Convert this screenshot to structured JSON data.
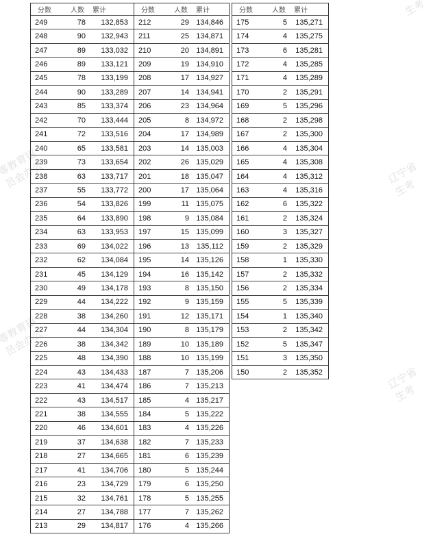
{
  "headers": {
    "score": "分数",
    "count": "人数",
    "cumulative": "累计"
  },
  "blocks": [
    {
      "rows": [
        [
          "249",
          "78",
          "132,853"
        ],
        [
          "248",
          "90",
          "132,943"
        ],
        [
          "247",
          "89",
          "133,032"
        ],
        [
          "246",
          "89",
          "133,121"
        ],
        [
          "245",
          "78",
          "133,199"
        ],
        [
          "244",
          "90",
          "133,289"
        ],
        [
          "243",
          "85",
          "133,374"
        ],
        [
          "242",
          "70",
          "133,444"
        ],
        [
          "241",
          "72",
          "133,516"
        ],
        [
          "240",
          "65",
          "133,581"
        ],
        [
          "239",
          "73",
          "133,654"
        ],
        [
          "238",
          "63",
          "133,717"
        ],
        [
          "237",
          "55",
          "133,772"
        ],
        [
          "236",
          "54",
          "133,826"
        ],
        [
          "235",
          "64",
          "133,890"
        ],
        [
          "234",
          "63",
          "133,953"
        ],
        [
          "233",
          "69",
          "134,022"
        ],
        [
          "232",
          "62",
          "134,084"
        ],
        [
          "231",
          "45",
          "134,129"
        ],
        [
          "230",
          "49",
          "134,178"
        ],
        [
          "229",
          "44",
          "134,222"
        ],
        [
          "228",
          "38",
          "134,260"
        ],
        [
          "227",
          "44",
          "134,304"
        ],
        [
          "226",
          "38",
          "134,342"
        ],
        [
          "225",
          "48",
          "134,390"
        ],
        [
          "224",
          "43",
          "134,433"
        ],
        [
          "223",
          "41",
          "134,474"
        ],
        [
          "222",
          "43",
          "134,517"
        ],
        [
          "221",
          "38",
          "134,555"
        ],
        [
          "220",
          "46",
          "134,601"
        ],
        [
          "219",
          "37",
          "134,638"
        ],
        [
          "218",
          "27",
          "134,665"
        ],
        [
          "217",
          "41",
          "134,706"
        ],
        [
          "216",
          "23",
          "134,729"
        ],
        [
          "215",
          "32",
          "134,761"
        ],
        [
          "214",
          "27",
          "134,788"
        ],
        [
          "213",
          "29",
          "134,817"
        ]
      ]
    },
    {
      "rows": [
        [
          "212",
          "29",
          "134,846"
        ],
        [
          "211",
          "25",
          "134,871"
        ],
        [
          "210",
          "20",
          "134,891"
        ],
        [
          "209",
          "19",
          "134,910"
        ],
        [
          "208",
          "17",
          "134,927"
        ],
        [
          "207",
          "14",
          "134,941"
        ],
        [
          "206",
          "23",
          "134,964"
        ],
        [
          "205",
          "8",
          "134,972"
        ],
        [
          "204",
          "17",
          "134,989"
        ],
        [
          "203",
          "14",
          "135,003"
        ],
        [
          "202",
          "26",
          "135,029"
        ],
        [
          "201",
          "18",
          "135,047"
        ],
        [
          "200",
          "17",
          "135,064"
        ],
        [
          "199",
          "11",
          "135,075"
        ],
        [
          "198",
          "9",
          "135,084"
        ],
        [
          "197",
          "15",
          "135,099"
        ],
        [
          "196",
          "13",
          "135,112"
        ],
        [
          "195",
          "14",
          "135,126"
        ],
        [
          "194",
          "16",
          "135,142"
        ],
        [
          "193",
          "8",
          "135,150"
        ],
        [
          "192",
          "9",
          "135,159"
        ],
        [
          "191",
          "12",
          "135,171"
        ],
        [
          "190",
          "8",
          "135,179"
        ],
        [
          "189",
          "10",
          "135,189"
        ],
        [
          "188",
          "10",
          "135,199"
        ],
        [
          "187",
          "7",
          "135,206"
        ],
        [
          "186",
          "7",
          "135,213"
        ],
        [
          "185",
          "4",
          "135,217"
        ],
        [
          "184",
          "5",
          "135,222"
        ],
        [
          "183",
          "4",
          "135,226"
        ],
        [
          "182",
          "7",
          "135,233"
        ],
        [
          "181",
          "6",
          "135,239"
        ],
        [
          "180",
          "5",
          "135,244"
        ],
        [
          "179",
          "6",
          "135,250"
        ],
        [
          "178",
          "5",
          "135,255"
        ],
        [
          "177",
          "7",
          "135,262"
        ],
        [
          "176",
          "4",
          "135,266"
        ]
      ]
    },
    {
      "rows": [
        [
          "175",
          "5",
          "135,271"
        ],
        [
          "174",
          "4",
          "135,275"
        ],
        [
          "173",
          "6",
          "135,281"
        ],
        [
          "172",
          "4",
          "135,285"
        ],
        [
          "171",
          "4",
          "135,289"
        ],
        [
          "170",
          "2",
          "135,291"
        ],
        [
          "169",
          "5",
          "135,296"
        ],
        [
          "168",
          "2",
          "135,298"
        ],
        [
          "167",
          "2",
          "135,300"
        ],
        [
          "166",
          "4",
          "135,304"
        ],
        [
          "165",
          "4",
          "135,308"
        ],
        [
          "164",
          "4",
          "135,312"
        ],
        [
          "163",
          "4",
          "135,316"
        ],
        [
          "162",
          "6",
          "135,322"
        ],
        [
          "161",
          "2",
          "135,324"
        ],
        [
          "160",
          "3",
          "135,327"
        ],
        [
          "159",
          "2",
          "135,329"
        ],
        [
          "158",
          "1",
          "135,330"
        ],
        [
          "157",
          "2",
          "135,332"
        ],
        [
          "156",
          "2",
          "135,334"
        ],
        [
          "155",
          "5",
          "135,339"
        ],
        [
          "154",
          "1",
          "135,340"
        ],
        [
          "153",
          "2",
          "135,342"
        ],
        [
          "152",
          "5",
          "135,347"
        ],
        [
          "151",
          "3",
          "135,350"
        ],
        [
          "150",
          "2",
          "135,352"
        ]
      ]
    }
  ],
  "watermark": "辽宁省高中等教育招生考试委员会办公室"
}
